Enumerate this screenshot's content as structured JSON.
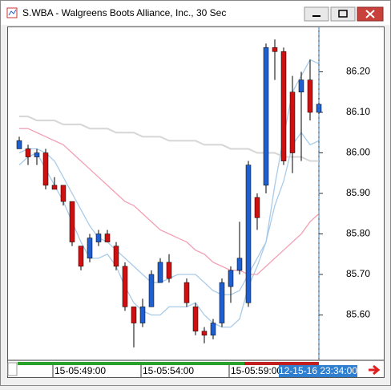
{
  "chart_data": {
    "type": "candlestick",
    "title": "S.WBA - Walgreens Boots Alliance, Inc., 30 Sec",
    "categories": [
      null,
      null,
      null,
      null,
      "15-05:49:00",
      null,
      null,
      null,
      null,
      null,
      null,
      null,
      null,
      null,
      "15-05:54:00",
      null,
      null,
      null,
      null,
      null,
      null,
      null,
      null,
      null,
      "15-05:59:00",
      null,
      null,
      null,
      null,
      null,
      null,
      null,
      null,
      null,
      null
    ],
    "open": [
      86.01,
      86.01,
      85.99,
      86.0,
      85.92,
      85.92,
      85.88,
      85.77,
      85.74,
      85.78,
      85.8,
      85.77,
      85.72,
      85.62,
      85.58,
      85.62,
      85.68,
      85.73,
      null,
      85.68,
      85.62,
      85.56,
      85.55,
      85.58,
      85.67,
      85.71,
      85.63,
      85.89,
      85.92,
      86.26,
      86.25,
      86.15,
      86.15,
      86.18,
      86.1
    ],
    "high": [
      86.04,
      86.02,
      86.01,
      86.01,
      85.94,
      85.92,
      85.88,
      85.77,
      85.8,
      85.81,
      85.81,
      85.78,
      85.73,
      85.62,
      85.64,
      85.71,
      85.74,
      85.75,
      null,
      85.69,
      85.63,
      85.57,
      85.59,
      85.69,
      85.72,
      85.83,
      85.98,
      85.9,
      86.27,
      86.28,
      86.26,
      86.19,
      86.2,
      86.23,
      86.14
    ],
    "low": [
      86.01,
      85.97,
      85.97,
      85.91,
      85.91,
      85.87,
      85.77,
      85.71,
      85.73,
      85.77,
      85.78,
      85.71,
      85.61,
      85.52,
      85.57,
      85.62,
      85.68,
      85.68,
      null,
      85.62,
      85.55,
      85.53,
      85.54,
      85.57,
      85.63,
      85.7,
      85.62,
      85.81,
      85.9,
      86.18,
      85.97,
      85.95,
      85.98,
      86.08,
      86.09
    ],
    "close": [
      86.03,
      85.99,
      86.0,
      85.92,
      85.91,
      85.88,
      85.78,
      85.72,
      85.79,
      85.8,
      85.78,
      85.72,
      85.62,
      85.58,
      85.62,
      85.7,
      85.73,
      85.69,
      null,
      85.63,
      85.56,
      85.55,
      85.58,
      85.68,
      85.71,
      85.74,
      85.97,
      85.84,
      86.26,
      86.25,
      85.98,
      86.0,
      86.18,
      86.1,
      86.12
    ],
    "up_color": "#1f5fd0",
    "down_color": "#d01010",
    "overlays": [
      {
        "color": "#a9cbe8",
        "values": [
          86.0,
          86.01,
          86.01,
          86.0,
          85.98,
          85.94,
          85.9,
          85.86,
          85.82,
          85.79,
          85.78,
          85.76,
          85.74,
          85.72,
          85.7,
          85.68,
          85.68,
          85.69,
          85.7,
          85.7,
          85.7,
          85.68,
          85.66,
          85.65,
          85.65,
          85.66,
          85.7,
          85.74,
          85.78,
          85.92,
          86.04,
          86.15,
          86.19,
          86.23,
          86.22
        ]
      },
      {
        "color": "#a9cbe8",
        "values": [
          85.97,
          85.99,
          86.0,
          85.96,
          85.92,
          85.88,
          85.83,
          85.78,
          85.74,
          85.74,
          85.75,
          85.72,
          85.67,
          85.63,
          85.61,
          85.6,
          85.6,
          85.62,
          85.62,
          85.62,
          85.63,
          85.6,
          85.58,
          85.57,
          85.57,
          85.59,
          85.67,
          85.72,
          85.78,
          85.87,
          85.93,
          86.02,
          86.05,
          86.02,
          86.03
        ]
      },
      {
        "color": "#f2a0b4",
        "values": [
          86.06,
          86.06,
          86.05,
          86.04,
          86.03,
          86.02,
          86.0,
          85.98,
          85.96,
          85.94,
          85.92,
          85.9,
          85.88,
          85.87,
          85.85,
          85.83,
          85.81,
          85.8,
          85.79,
          85.78,
          85.76,
          85.75,
          85.73,
          85.72,
          85.71,
          85.71,
          85.7,
          85.7,
          85.72,
          85.74,
          85.76,
          85.78,
          85.8,
          85.83,
          85.85
        ]
      },
      {
        "color": "#d6d6d6",
        "values": [
          86.09,
          86.09,
          86.08,
          86.08,
          86.08,
          86.07,
          86.07,
          86.07,
          86.06,
          86.06,
          86.06,
          86.05,
          86.05,
          86.05,
          86.04,
          86.04,
          86.04,
          86.03,
          86.03,
          86.03,
          86.03,
          86.02,
          86.02,
          86.02,
          86.01,
          86.01,
          86.01,
          86.0,
          86.0,
          86.0,
          85.99,
          85.99,
          85.99,
          85.98,
          85.98
        ]
      }
    ],
    "ylim": [
      85.49,
      86.31
    ],
    "yticks": [
      {
        "value": 86.2,
        "label": "86.20"
      },
      {
        "value": 86.1,
        "label": "86.10"
      },
      {
        "value": 86.0,
        "label": "86.00"
      },
      {
        "value": 85.9,
        "label": "85.90"
      },
      {
        "value": 85.8,
        "label": "85.80"
      },
      {
        "value": 85.7,
        "label": "85.70"
      },
      {
        "value": 85.6,
        "label": "85.60"
      }
    ],
    "cursor_label": "12-15-16 23:34:00"
  }
}
